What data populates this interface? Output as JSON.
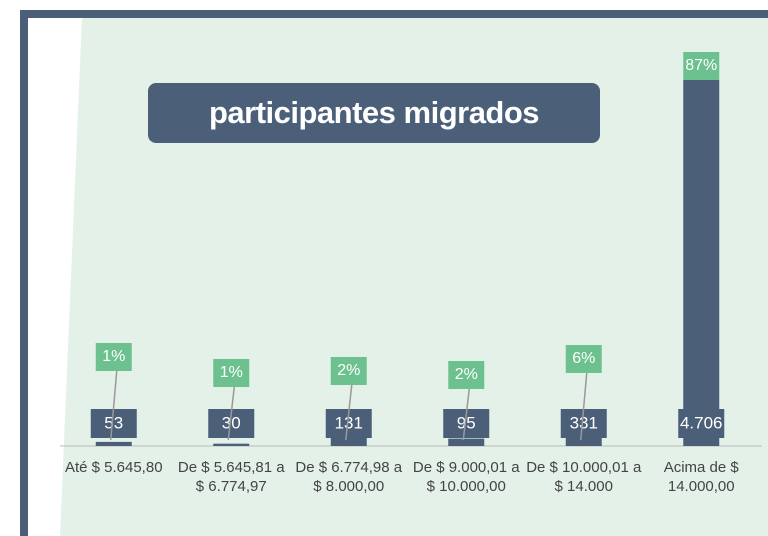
{
  "chart_data": {
    "type": "bar",
    "title": "participantes migrados",
    "categories": [
      "Até $ 5.645,80",
      "De $ 5.645,81 a $ 6.774,97",
      "De $ 6.774,98 a $ 8.000,00",
      "De $ 9.000,01 a $ 10.000,00",
      "De $ 10.000,01 a $ 14.000",
      "Acima de $ 14.000,00"
    ],
    "values": [
      53,
      30,
      131,
      95,
      331,
      4706
    ],
    "value_labels": [
      "53",
      "30",
      "131",
      "95",
      "331",
      "4.706"
    ],
    "shares": [
      1,
      1,
      2,
      2,
      6,
      87
    ],
    "share_labels": [
      "1%",
      "1%",
      "2%",
      "2%",
      "6%",
      "87%"
    ],
    "color": "#4b5f79",
    "share_color": "#6cc18f",
    "ylim": [
      0,
      5000
    ]
  }
}
